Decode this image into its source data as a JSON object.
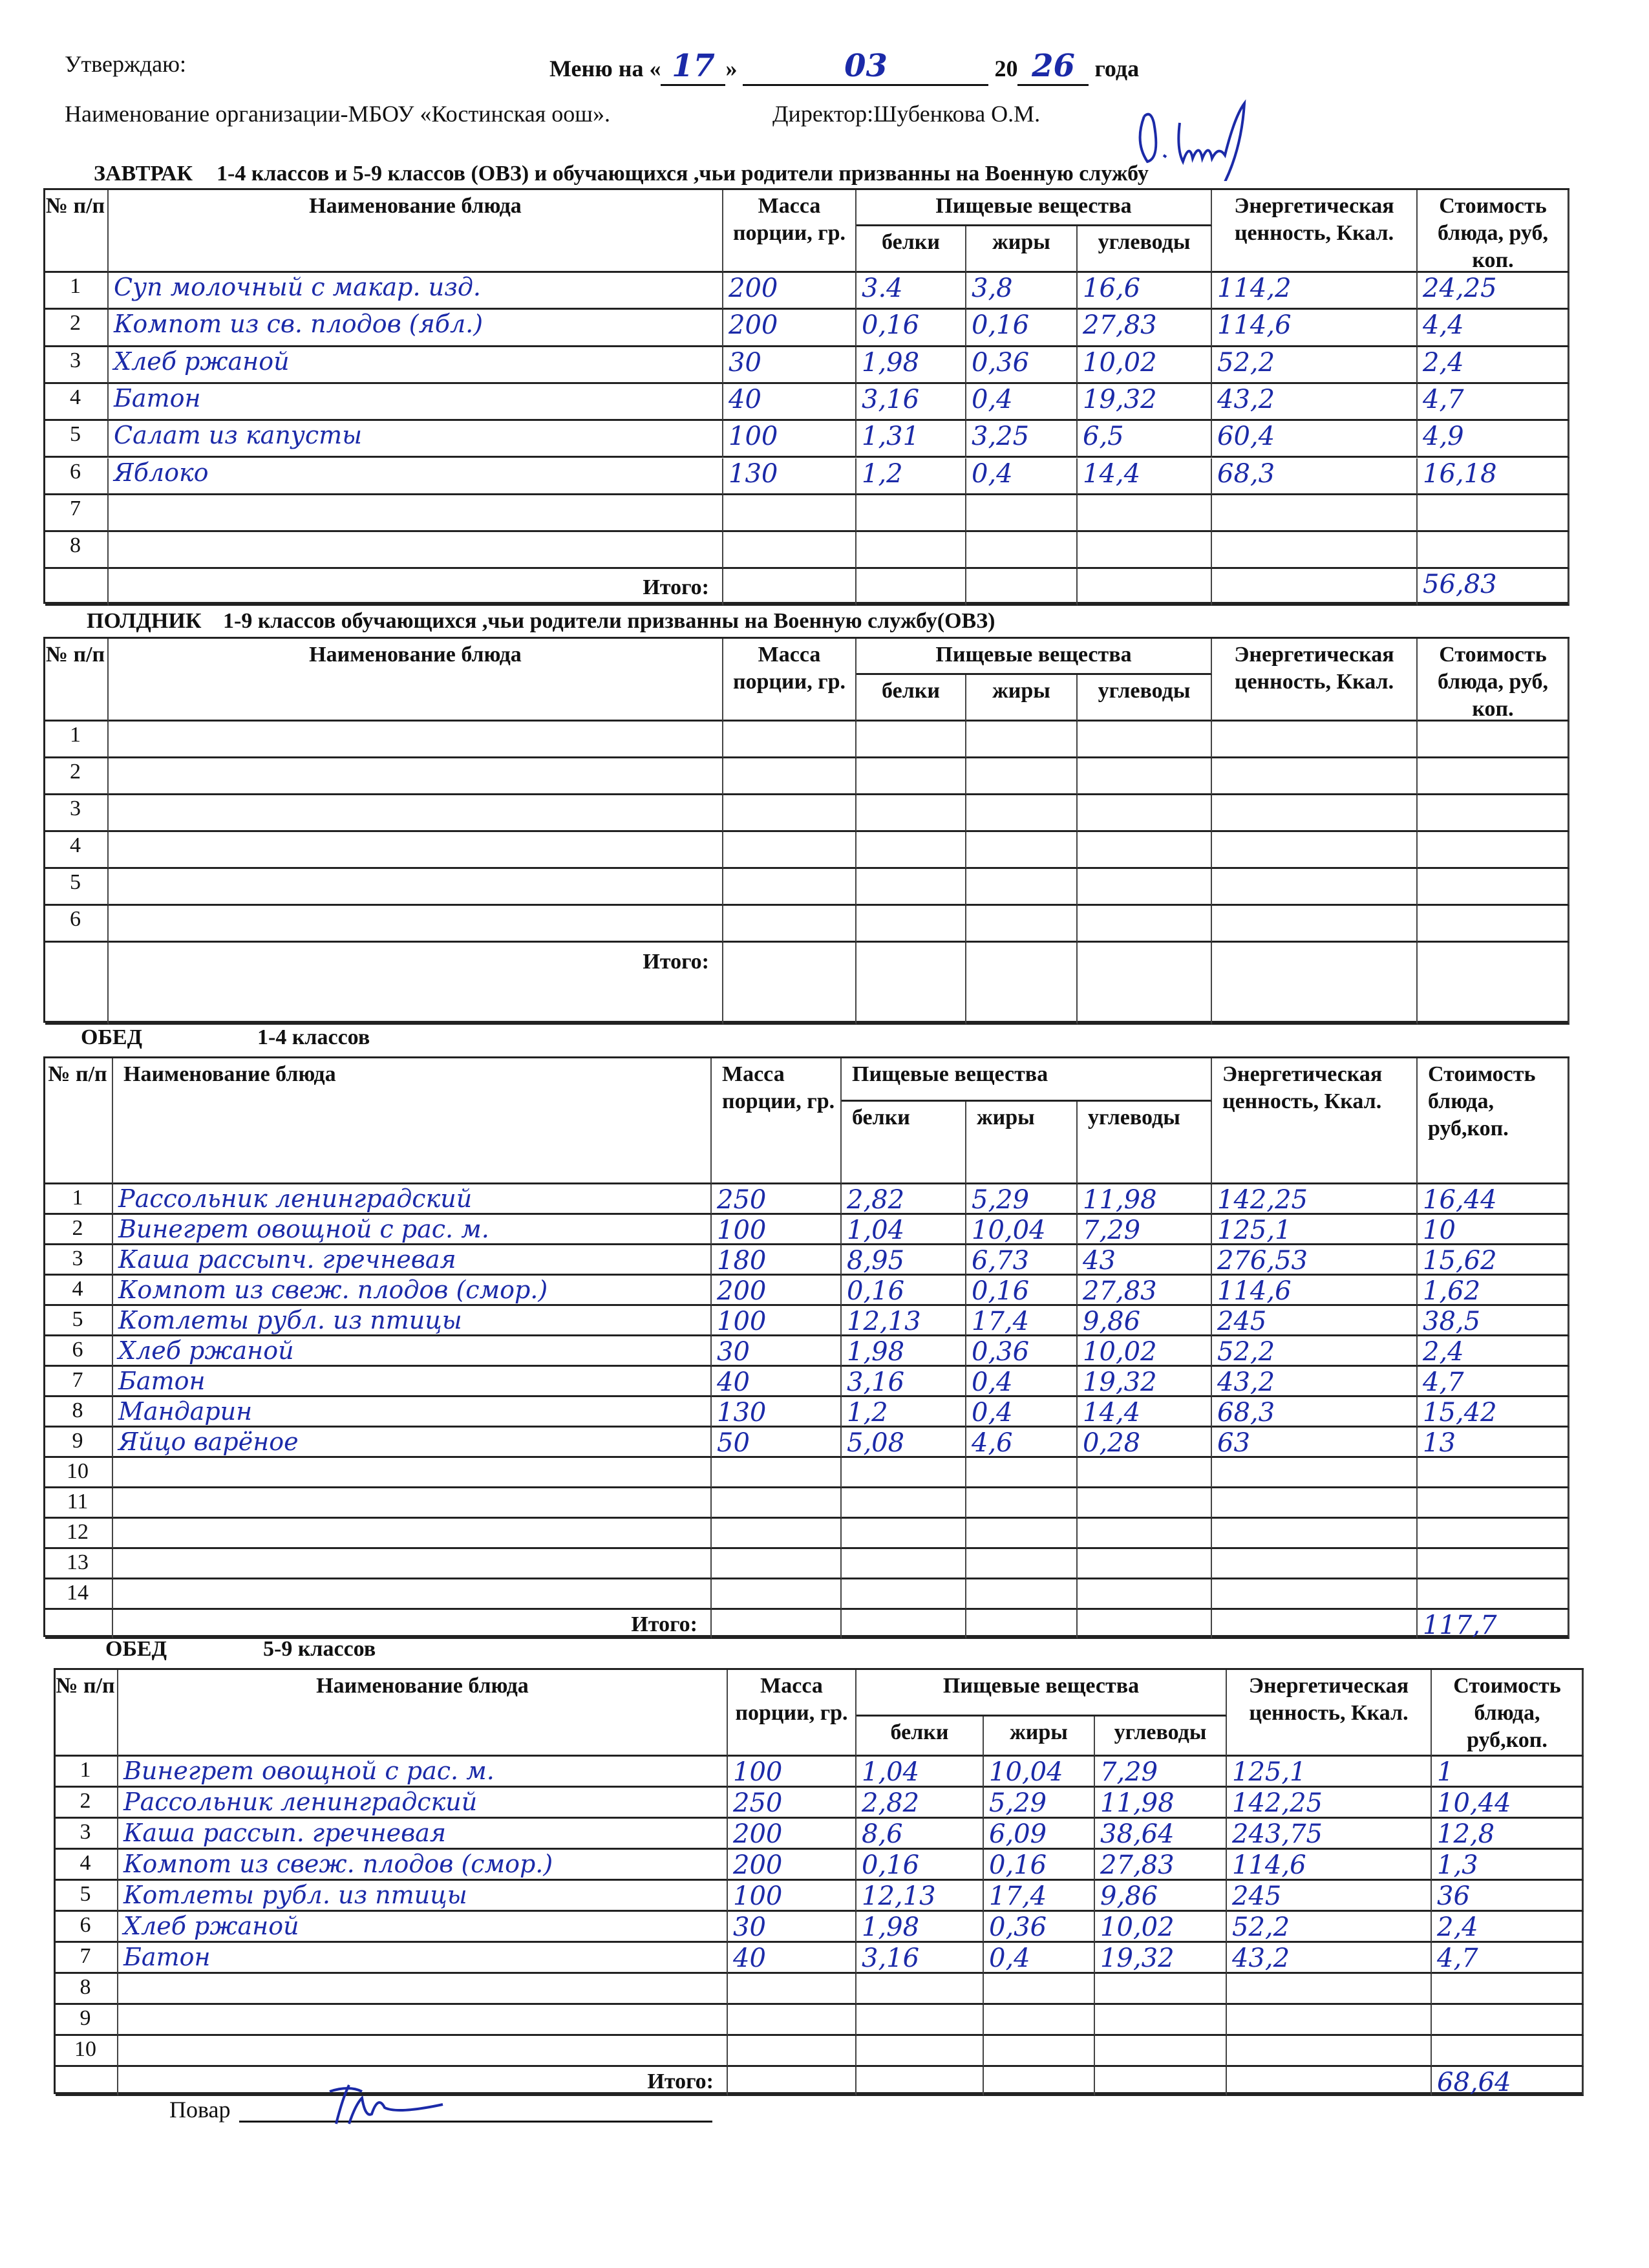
{
  "header": {
    "approve": "Утверждаю:",
    "menu_for": "Меню на",
    "day": "17",
    "month": "03",
    "year_prefix": "20",
    "year_suffix": "26",
    "year_word": "года",
    "organization": "Наименование организации-МБОУ «Костинская оош».",
    "director": "Директор:Шубенкова О.М."
  },
  "columns": {
    "num": "№ п/п",
    "name": "Наименование блюда",
    "mass": "Масса порции, гр.",
    "nutrients": "Пищевые вещества",
    "protein": "белки",
    "fat": "жиры",
    "carbs": "углеводы",
    "energy": "Энергетическая ценность, Ккал.",
    "cost": "Стоимость блюда, руб, коп.",
    "cost_alt": "Стоимость блюда, руб,коп."
  },
  "tables": [
    {
      "caption_a": "ЗАВТРАК",
      "caption_b": "1-4 классов и 5-9 классов (ОВЗ) и обучающихся ,чьи родители призванны на Военную службу",
      "total_label": "Итого:",
      "total": "56,83",
      "rows": [
        [
          "1",
          "Суп молочный с макар. изд.",
          "200",
          "3.4",
          "3,8",
          "16,6",
          "114,2",
          "24,25"
        ],
        [
          "2",
          "Компот из св. плодов (ябл.)",
          "200",
          "0,16",
          "0,16",
          "27,83",
          "114,6",
          "4,4"
        ],
        [
          "3",
          "Хлеб ржаной",
          "30",
          "1,98",
          "0,36",
          "10,02",
          "52,2",
          "2,4"
        ],
        [
          "4",
          "Батон",
          "40",
          "3,16",
          "0,4",
          "19,32",
          "43,2",
          "4,7"
        ],
        [
          "5",
          "Салат из капусты",
          "100",
          "1,31",
          "3,25",
          "6,5",
          "60,4",
          "4,9"
        ],
        [
          "6",
          "Яблоко",
          "130",
          "1,2",
          "0,4",
          "14,4",
          "68,3",
          "16,18"
        ],
        [
          "7",
          "",
          "",
          "",
          "",
          "",
          "",
          ""
        ],
        [
          "8",
          "",
          "",
          "",
          "",
          "",
          "",
          ""
        ]
      ]
    },
    {
      "caption_a": "ПОЛДНИК",
      "caption_b": "1-9 классов    обучающихся ,чьи родители призванны на Военную службу(ОВЗ)",
      "total_label": "Итого:",
      "total": "",
      "rows": [
        [
          "1",
          "",
          "",
          "",
          "",
          "",
          "",
          ""
        ],
        [
          "2",
          "",
          "",
          "",
          "",
          "",
          "",
          ""
        ],
        [
          "3",
          "",
          "",
          "",
          "",
          "",
          "",
          ""
        ],
        [
          "4",
          "",
          "",
          "",
          "",
          "",
          "",
          ""
        ],
        [
          "5",
          "",
          "",
          "",
          "",
          "",
          "",
          ""
        ],
        [
          "6",
          "",
          "",
          "",
          "",
          "",
          "",
          ""
        ]
      ]
    },
    {
      "caption_a": "ОБЕД",
      "caption_b": "1-4 классов",
      "total_label": "Итого:",
      "total": "117,7",
      "rows": [
        [
          "1",
          "Рассольник ленинградский",
          "250",
          "2,82",
          "5,29",
          "11,98",
          "142,25",
          "16,44"
        ],
        [
          "2",
          "Винегрет овощной с рас. м.",
          "100",
          "1,04",
          "10,04",
          "7,29",
          "125,1",
          "10"
        ],
        [
          "3",
          "Каша рассыпч. гречневая",
          "180",
          "8,95",
          "6,73",
          "43",
          "276,53",
          "15,62"
        ],
        [
          "4",
          "Компот из свеж. плодов (смор.)",
          "200",
          "0,16",
          "0,16",
          "27,83",
          "114,6",
          "1,62"
        ],
        [
          "5",
          "Котлеты рубл. из птицы",
          "100",
          "12,13",
          "17,4",
          "9,86",
          "245",
          "38,5"
        ],
        [
          "6",
          "Хлеб ржаной",
          "30",
          "1,98",
          "0,36",
          "10,02",
          "52,2",
          "2,4"
        ],
        [
          "7",
          "Батон",
          "40",
          "3,16",
          "0,4",
          "19,32",
          "43,2",
          "4,7"
        ],
        [
          "8",
          "Мандарин",
          "130",
          "1,2",
          "0,4",
          "14,4",
          "68,3",
          "15,42"
        ],
        [
          "9",
          "Яйцо варёное",
          "50",
          "5,08",
          "4,6",
          "0,28",
          "63",
          "13"
        ],
        [
          "10",
          "",
          "",
          "",
          "",
          "",
          "",
          ""
        ],
        [
          "11",
          "",
          "",
          "",
          "",
          "",
          "",
          ""
        ],
        [
          "12",
          "",
          "",
          "",
          "",
          "",
          "",
          ""
        ],
        [
          "13",
          "",
          "",
          "",
          "",
          "",
          "",
          ""
        ],
        [
          "14",
          "",
          "",
          "",
          "",
          "",
          "",
          ""
        ]
      ]
    },
    {
      "caption_a": "ОБЕД",
      "caption_b": "5-9 классов",
      "total_label": "Итого:",
      "total": "68,64",
      "rows": [
        [
          "1",
          "Винегрет овощной с рас. м.",
          "100",
          "1,04",
          "10,04",
          "7,29",
          "125,1",
          "1"
        ],
        [
          "2",
          "Рассольник ленинградский",
          "250",
          "2,82",
          "5,29",
          "11,98",
          "142,25",
          "10,44"
        ],
        [
          "3",
          "Каша рассып. гречневая",
          "200",
          "8,6",
          "6,09",
          "38,64",
          "243,75",
          "12,8"
        ],
        [
          "4",
          "Компот из свеж. плодов (смор.)",
          "200",
          "0,16",
          "0,16",
          "27,83",
          "114,6",
          "1,3"
        ],
        [
          "5",
          "Котлеты рубл. из птицы",
          "100",
          "12,13",
          "17,4",
          "9,86",
          "245",
          "36"
        ],
        [
          "6",
          "Хлеб ржаной",
          "30",
          "1,98",
          "0,36",
          "10,02",
          "52,2",
          "2,4"
        ],
        [
          "7",
          "Батон",
          "40",
          "3,16",
          "0,4",
          "19,32",
          "43,2",
          "4,7"
        ],
        [
          "8",
          "",
          "",
          "",
          "",
          "",
          "",
          ""
        ],
        [
          "9",
          "",
          "",
          "",
          "",
          "",
          "",
          ""
        ],
        [
          "10",
          "",
          "",
          "",
          "",
          "",
          "",
          ""
        ]
      ]
    }
  ],
  "footer": {
    "cook_label": "Повар"
  },
  "colors": {
    "ink": "#1b2aa8",
    "print": "#111111"
  }
}
